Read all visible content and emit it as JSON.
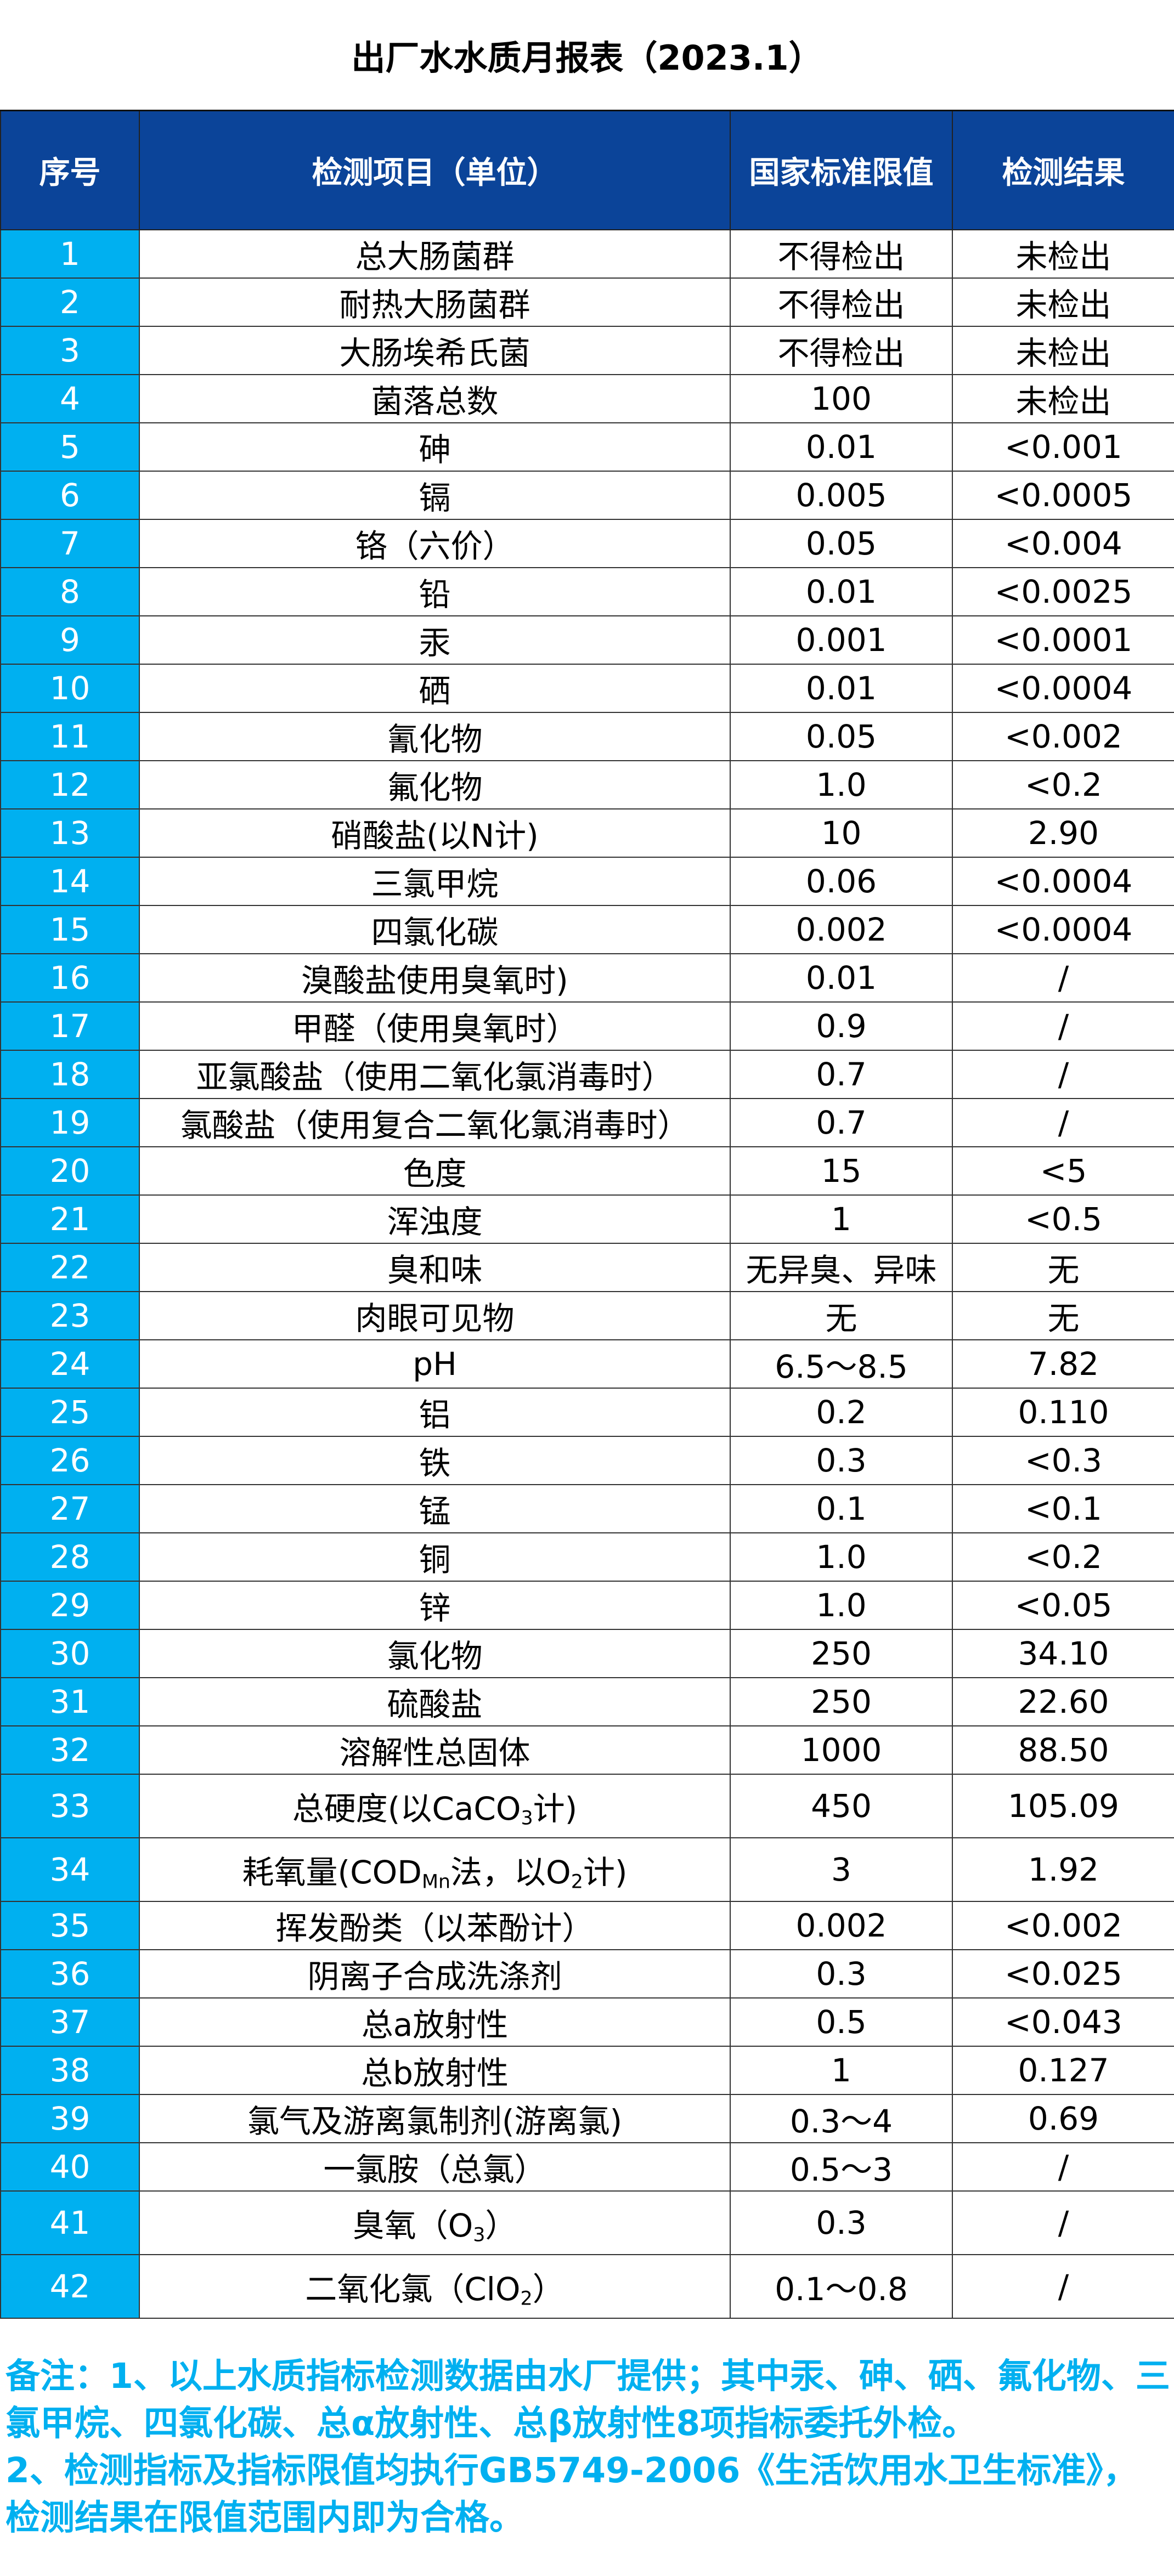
{
  "title": "出厂水水质月报表（2023.1）",
  "colors": {
    "header_bg": "#0b4499",
    "index_bg": "#00b0f0",
    "note_text": "#00b0f0"
  },
  "columns": [
    "序号",
    "检测项目（单位）",
    "国家标准限值",
    "检测结果"
  ],
  "rows": [
    {
      "no": "1",
      "item": [
        {
          "t": "总大肠菌群"
        }
      ],
      "limit": "不得检出",
      "result": "未检出"
    },
    {
      "no": "2",
      "item": [
        {
          "t": "耐热大肠菌群"
        }
      ],
      "limit": "不得检出",
      "result": "未检出"
    },
    {
      "no": "3",
      "item": [
        {
          "t": "大肠埃希氏菌"
        }
      ],
      "limit": "不得检出",
      "result": "未检出"
    },
    {
      "no": "4",
      "item": [
        {
          "t": "菌落总数"
        }
      ],
      "limit": "100",
      "result": "未检出"
    },
    {
      "no": "5",
      "item": [
        {
          "t": "砷"
        }
      ],
      "limit": "0.01",
      "result": "<0.001"
    },
    {
      "no": "6",
      "item": [
        {
          "t": "镉"
        }
      ],
      "limit": "0.005",
      "result": "<0.0005"
    },
    {
      "no": "7",
      "item": [
        {
          "t": "铬（六价）"
        }
      ],
      "limit": "0.05",
      "result": "<0.004"
    },
    {
      "no": "8",
      "item": [
        {
          "t": "铅"
        }
      ],
      "limit": "0.01",
      "result": "<0.0025"
    },
    {
      "no": "9",
      "item": [
        {
          "t": "汞"
        }
      ],
      "limit": "0.001",
      "result": "<0.0001"
    },
    {
      "no": "10",
      "item": [
        {
          "t": "硒"
        }
      ],
      "limit": "0.01",
      "result": "<0.0004"
    },
    {
      "no": "11",
      "item": [
        {
          "t": "氰化物"
        }
      ],
      "limit": "0.05",
      "result": "<0.002"
    },
    {
      "no": "12",
      "item": [
        {
          "t": "氟化物"
        }
      ],
      "limit": "1.0",
      "result": "<0.2"
    },
    {
      "no": "13",
      "item": [
        {
          "t": "硝酸盐(以N计)"
        }
      ],
      "limit": "10",
      "result": "2.90"
    },
    {
      "no": "14",
      "item": [
        {
          "t": "三氯甲烷"
        }
      ],
      "limit": "0.06",
      "result": "<0.0004"
    },
    {
      "no": "15",
      "item": [
        {
          "t": "四氯化碳"
        }
      ],
      "limit": "0.002",
      "result": "<0.0004"
    },
    {
      "no": "16",
      "item": [
        {
          "t": "溴酸盐使用臭氧时)"
        }
      ],
      "limit": "0.01",
      "result": "/"
    },
    {
      "no": "17",
      "item": [
        {
          "t": "甲醛（使用臭氧时）"
        }
      ],
      "limit": "0.9",
      "result": "/"
    },
    {
      "no": "18",
      "item": [
        {
          "t": "亚氯酸盐（使用二氧化氯消毒时）"
        }
      ],
      "limit": "0.7",
      "result": "/"
    },
    {
      "no": "19",
      "item": [
        {
          "t": "氯酸盐（使用复合二氧化氯消毒时）"
        }
      ],
      "limit": "0.7",
      "result": "/"
    },
    {
      "no": "20",
      "item": [
        {
          "t": "色度"
        }
      ],
      "limit": "15",
      "result": "<5"
    },
    {
      "no": "21",
      "item": [
        {
          "t": "浑浊度"
        }
      ],
      "limit": "1",
      "result": "<0.5"
    },
    {
      "no": "22",
      "item": [
        {
          "t": "臭和味"
        }
      ],
      "limit": "无异臭、异味",
      "result": "无"
    },
    {
      "no": "23",
      "item": [
        {
          "t": "肉眼可见物"
        }
      ],
      "limit": "无",
      "result": "无"
    },
    {
      "no": "24",
      "item": [
        {
          "t": "pH"
        }
      ],
      "limit": "6.5～8.5",
      "result": "7.82"
    },
    {
      "no": "25",
      "item": [
        {
          "t": "铝"
        }
      ],
      "limit": "0.2",
      "result": "0.110"
    },
    {
      "no": "26",
      "item": [
        {
          "t": "铁"
        }
      ],
      "limit": "0.3",
      "result": "<0.3"
    },
    {
      "no": "27",
      "item": [
        {
          "t": "锰"
        }
      ],
      "limit": "0.1",
      "result": "<0.1"
    },
    {
      "no": "28",
      "item": [
        {
          "t": "铜"
        }
      ],
      "limit": "1.0",
      "result": "<0.2"
    },
    {
      "no": "29",
      "item": [
        {
          "t": "锌"
        }
      ],
      "limit": "1.0",
      "result": "<0.05"
    },
    {
      "no": "30",
      "item": [
        {
          "t": "氯化物"
        }
      ],
      "limit": "250",
      "result": "34.10"
    },
    {
      "no": "31",
      "item": [
        {
          "t": "硫酸盐"
        }
      ],
      "limit": "250",
      "result": "22.60"
    },
    {
      "no": "32",
      "item": [
        {
          "t": "溶解性总固体"
        }
      ],
      "limit": "1000",
      "result": "88.50"
    },
    {
      "no": "33",
      "tall": true,
      "item": [
        {
          "t": "总硬度(以CaCO"
        },
        {
          "sub": "3"
        },
        {
          "t": "计)"
        }
      ],
      "limit": "450",
      "result": "105.09"
    },
    {
      "no": "34",
      "tall": true,
      "item": [
        {
          "t": "耗氧量(COD"
        },
        {
          "sub": "Mn"
        },
        {
          "t": "法，以O"
        },
        {
          "sub": "2"
        },
        {
          "t": "计)"
        }
      ],
      "limit": "3",
      "result": "1.92"
    },
    {
      "no": "35",
      "item": [
        {
          "t": "挥发酚类（以苯酚计）"
        }
      ],
      "limit": "0.002",
      "result": "<0.002"
    },
    {
      "no": "36",
      "item": [
        {
          "t": "阴离子合成洗涤剂"
        }
      ],
      "limit": "0.3",
      "result": "<0.025"
    },
    {
      "no": "37",
      "item": [
        {
          "t": "总a放射性"
        }
      ],
      "limit": "0.5",
      "result": "<0.043"
    },
    {
      "no": "38",
      "item": [
        {
          "t": "总b放射性"
        }
      ],
      "limit": "1",
      "result": "0.127"
    },
    {
      "no": "39",
      "item": [
        {
          "t": "氯气及游离氯制剂(游离氯)"
        }
      ],
      "limit": "0.3～4",
      "result": "0.69"
    },
    {
      "no": "40",
      "item": [
        {
          "t": "一氯胺（总氯）"
        }
      ],
      "limit": "0.5～3",
      "result": "/"
    },
    {
      "no": "41",
      "tall": true,
      "item": [
        {
          "t": "臭氧（O"
        },
        {
          "sub": "3"
        },
        {
          "t": "）"
        }
      ],
      "limit": "0.3",
      "result": "/"
    },
    {
      "no": "42",
      "tall": true,
      "item": [
        {
          "t": "二氧化氯（ClO"
        },
        {
          "sub": "2"
        },
        {
          "t": "）"
        }
      ],
      "limit": "0.1～0.8",
      "result": "/"
    }
  ],
  "notes": [
    "备注：1、以上水质指标检测数据由水厂提供；其中汞、砷、硒、氟化物、三氯甲烷、四氯化碳、总α放射性、总β放射性8项指标委托外检。",
    "2、检测指标及指标限值均执行GB5749-2006《生活饮用水卫生标准》，检测结果在限值范围内即为合格。"
  ]
}
